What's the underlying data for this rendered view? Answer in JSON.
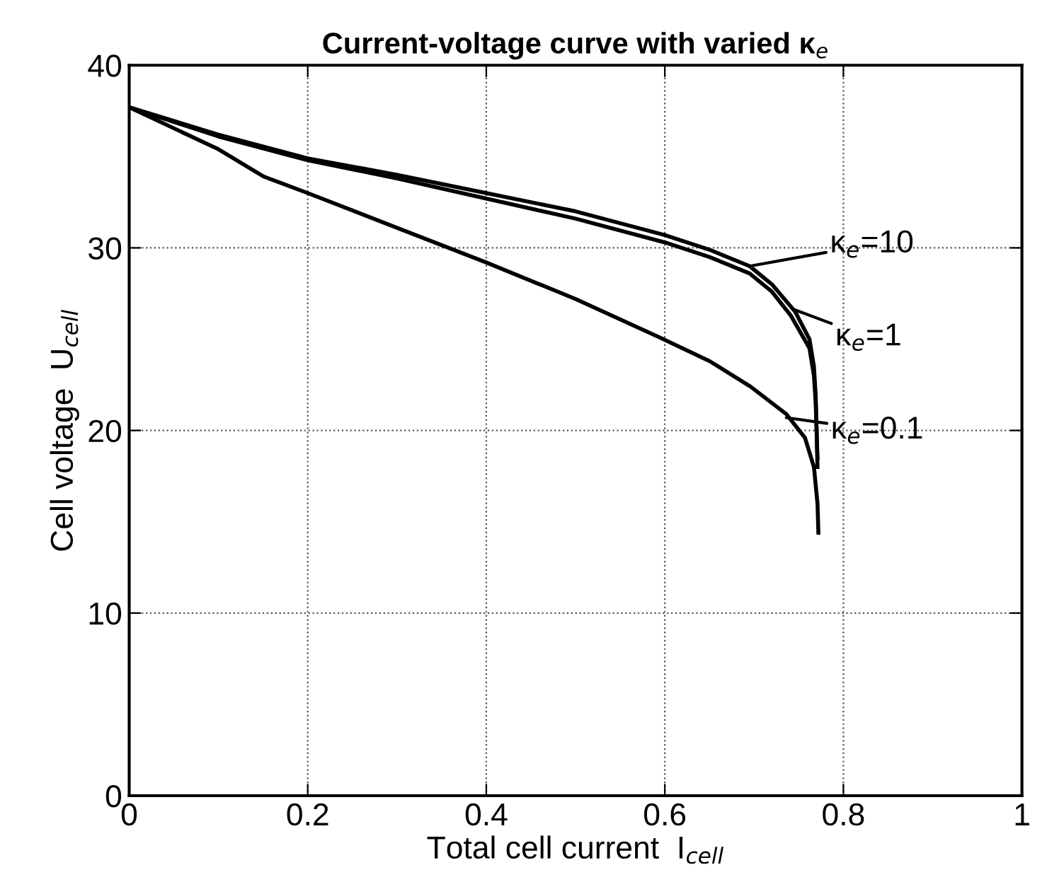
{
  "chart_data": {
    "type": "line",
    "title": "Current-voltage curve with varied κ$_{e}$",
    "xlabel": "Total cell current  I$_{cell}$",
    "ylabel": "Cell voltage  U$_{cell}$",
    "xlim": [
      0,
      1
    ],
    "ylim": [
      0,
      40
    ],
    "xticks": [
      0,
      0.2,
      0.4,
      0.6,
      0.8,
      1
    ],
    "yticks": [
      0,
      10,
      20,
      30,
      40
    ],
    "grid": true,
    "legend": false,
    "marker": "none",
    "line_style": "solid",
    "series": [
      {
        "color": "#000000",
        "x": [
          0,
          0.1,
          0.2,
          0.3,
          0.4,
          0.5,
          0.6,
          0.65,
          0.695,
          0.72,
          0.746,
          0.762,
          0.767,
          0.769,
          0.771
        ],
        "values": [
          37.7,
          36.2,
          34.9,
          34.0,
          33.0,
          32.0,
          30.7,
          29.9,
          29.0,
          28.0,
          26.5,
          25.0,
          23.5,
          21.9,
          18.0
        ]
      },
      {
        "color": "#000000",
        "x": [
          0,
          0.1,
          0.2,
          0.3,
          0.4,
          0.5,
          0.6,
          0.65,
          0.695,
          0.72,
          0.741,
          0.762,
          0.767,
          0.769,
          0.771
        ],
        "values": [
          37.7,
          36.1,
          34.8,
          33.8,
          32.7,
          31.6,
          30.3,
          29.5,
          28.6,
          27.6,
          26.3,
          24.5,
          23.0,
          21.5,
          18.5
        ]
      },
      {
        "color": "#000000",
        "x": [
          0,
          0.1,
          0.151,
          0.2,
          0.3,
          0.4,
          0.5,
          0.594,
          0.65,
          0.696,
          0.736,
          0.757,
          0.767,
          0.771,
          0.772
        ],
        "values": [
          37.7,
          35.4,
          33.9,
          33.0,
          31.1,
          29.2,
          27.2,
          25.1,
          23.8,
          22.4,
          20.9,
          19.6,
          18.0,
          16.0,
          14.4
        ]
      }
    ],
    "annotations": [
      {
        "text": "κ$_{e}$=10",
        "x": 0.695,
        "y": 29.0
      },
      {
        "text": "κ$_{e}$=1",
        "x": 0.746,
        "y": 26.6
      },
      {
        "text": "κ$_{e}$=0.1",
        "x": 0.736,
        "y": 20.7
      }
    ]
  }
}
